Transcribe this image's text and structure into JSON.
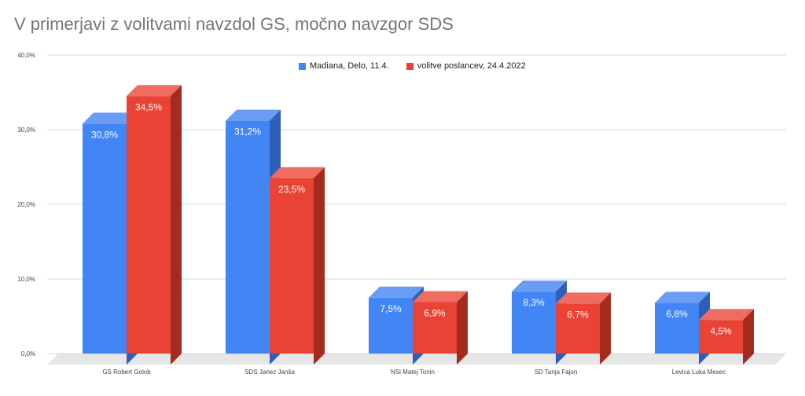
{
  "title": "V primerjavi z volitvami navzdol GS, močno navzgor SDS",
  "chart_data": {
    "type": "bar",
    "style": "3d-clustered",
    "title": "V primerjavi z volitvami navzdol GS, močno navzgor SDS",
    "xlabel": "",
    "ylabel": "",
    "categories": [
      "GS Robert Golob",
      "SDS Janez Janša",
      "NSi Matej Tonin",
      "SD Tanja Fajon",
      "Levica Luka Mesec"
    ],
    "series": [
      {
        "name": "Madiana, Delo, 11.4.",
        "color": "#4285f4",
        "top_color": "#6a9cf6",
        "side_color": "#2f5fb8",
        "values": [
          30.8,
          31.2,
          7.5,
          8.3,
          6.8
        ],
        "labels": [
          "30,8%",
          "31,2%",
          "7,5%",
          "8,3%",
          "6,8%"
        ]
      },
      {
        "name": "volitve poslancev, 24.4.2022",
        "color": "#ea4335",
        "top_color": "#ef6c61",
        "side_color": "#a52a20",
        "values": [
          34.5,
          23.5,
          6.9,
          6.7,
          4.5
        ],
        "labels": [
          "34,5%",
          "23,5%",
          "6,9%",
          "6,7%",
          "4,5%"
        ]
      }
    ],
    "yticks": [
      0,
      10,
      20,
      30,
      40
    ],
    "ytick_labels": [
      "0,0%",
      "10,0%",
      "20,0%",
      "30,0%",
      "40,0%"
    ],
    "ylim": [
      0,
      40
    ],
    "grid": true,
    "legend_position": "top-center"
  }
}
